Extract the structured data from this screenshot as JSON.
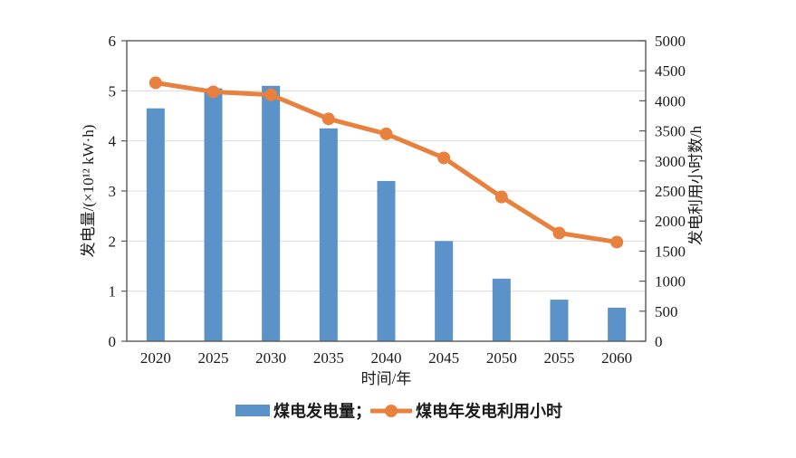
{
  "chart_data": {
    "type": "bar",
    "subtype": "bar-line-combo",
    "categories": [
      "2020",
      "2025",
      "2030",
      "2035",
      "2040",
      "2045",
      "2050",
      "2055",
      "2060"
    ],
    "series": [
      {
        "name": "煤电发电量",
        "type": "bar",
        "axis": "left",
        "values": [
          4.65,
          5.05,
          5.1,
          4.25,
          3.2,
          2.0,
          1.25,
          0.83,
          0.67
        ]
      },
      {
        "name": "煤电年发电利用小时",
        "type": "line",
        "axis": "right",
        "values": [
          4300,
          4150,
          4100,
          3700,
          3450,
          3050,
          2400,
          1800,
          1650
        ]
      }
    ],
    "title": "",
    "xlabel": "时间/年",
    "ylabel_left": "发电量/(×10¹² kW·h)",
    "ylabel_right": "发电利用小时数/h",
    "ylim_left": [
      0,
      6
    ],
    "ylim_right": [
      0,
      5000
    ],
    "yticks_left": [
      0,
      1,
      2,
      3,
      4,
      5,
      6
    ],
    "yticks_right": [
      0,
      500,
      1000,
      1500,
      2000,
      2500,
      3000,
      3500,
      4000,
      4500,
      5000
    ],
    "grid": "horizontal-at-left-integers",
    "legend_position": "bottom"
  },
  "legend": {
    "bar_label": "煤电发电量；",
    "line_label": "煤电年发电利用小时"
  },
  "colors": {
    "bar": "#5B93C9",
    "line": "#E8803E",
    "grid": "#DCDCDC",
    "frame": "#595959",
    "text": "#1A1A1A",
    "background": "#FFFFFF"
  }
}
